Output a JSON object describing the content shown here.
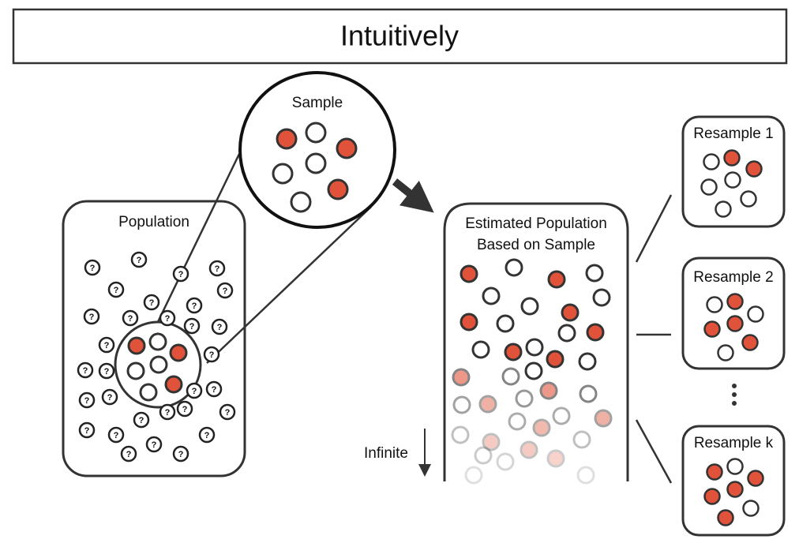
{
  "title": "Intuitively",
  "population": {
    "label": "Population",
    "unknown_symbol": "?"
  },
  "sample": {
    "label": "Sample"
  },
  "estimated_population": {
    "label_lines": [
      "Estimated Population",
      "Based on Sample"
    ]
  },
  "infinite_label": "Infinite",
  "resamples": [
    {
      "label": "Resample 1"
    },
    {
      "label": "Resample 2"
    },
    {
      "label": "Resample k"
    }
  ]
}
